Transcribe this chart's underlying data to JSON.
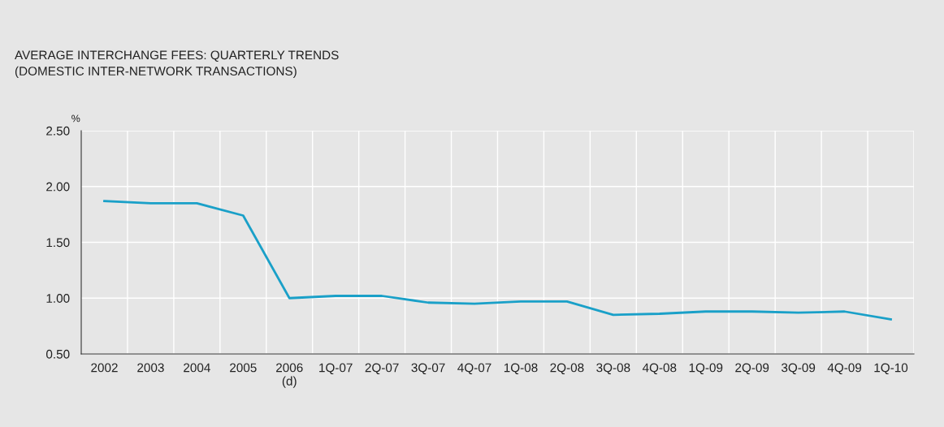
{
  "chart_data": {
    "type": "line",
    "title": "AVERAGE INTERCHANGE FEES: QUARTERLY TRENDS\n(DOMESTIC INTER-NETWORK TRANSACTIONS)",
    "ylabel": "%",
    "categories": [
      "2002",
      "2003",
      "2004",
      "2005",
      "2006\n(d)",
      "1Q-07",
      "2Q-07",
      "3Q-07",
      "4Q-07",
      "1Q-08",
      "2Q-08",
      "3Q-08",
      "4Q-08",
      "1Q-09",
      "2Q-09",
      "3Q-09",
      "4Q-09",
      "1Q-10"
    ],
    "series": [
      {
        "color": "#1aa0c8",
        "values": [
          1.87,
          1.85,
          1.85,
          1.74,
          1.0,
          1.02,
          1.02,
          0.96,
          0.95,
          0.97,
          0.97,
          0.85,
          0.86,
          0.88,
          0.88,
          0.87,
          0.88,
          0.81
        ]
      }
    ],
    "ylim": [
      0.5,
      2.5
    ],
    "yticks": [
      {
        "value": 0.5,
        "label": "0.50"
      },
      {
        "value": 1.0,
        "label": "1.00"
      },
      {
        "value": 1.5,
        "label": "1.50"
      },
      {
        "value": 2.0,
        "label": "2.00"
      },
      {
        "value": 2.5,
        "label": "2.50"
      }
    ],
    "grid": true,
    "marker": "none",
    "line_style": "solid"
  }
}
